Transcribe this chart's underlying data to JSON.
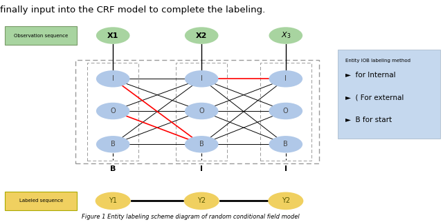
{
  "title": "Figure 1 Entity labeling scheme diagram of random conditional field model",
  "bg_color": "#ffffff",
  "node_color": "#b0c8e8",
  "node_color_top": "#a8d4a0",
  "node_color_bottom": "#f0d060",
  "dashed_box_color": "#999999",
  "legend_bg": "#c5d8ee",
  "obs_box_color": "#a8d4a0",
  "label_box_color": "#f0d060",
  "columns": [
    0.255,
    0.455,
    0.645
  ],
  "rows": [
    0.645,
    0.5,
    0.35
  ],
  "labels_iob": [
    "I",
    "O",
    "B"
  ],
  "x_labels": [
    "X1",
    "X2",
    "X3"
  ],
  "y_labels": [
    "Y1",
    "Y2",
    "Y2"
  ],
  "bottom_labels": [
    "B",
    "I",
    "I"
  ],
  "legend_title": "Entity IOB labeling method",
  "legend_items": [
    {
      "text": "►  for Internal"
    },
    {
      "text": "►  ( For external"
    },
    {
      "text": "►  B for start"
    }
  ],
  "red_lines_col1": [
    [
      0,
      2
    ],
    [
      1,
      2
    ]
  ],
  "red_lines_col2": [
    [
      0,
      0
    ]
  ]
}
